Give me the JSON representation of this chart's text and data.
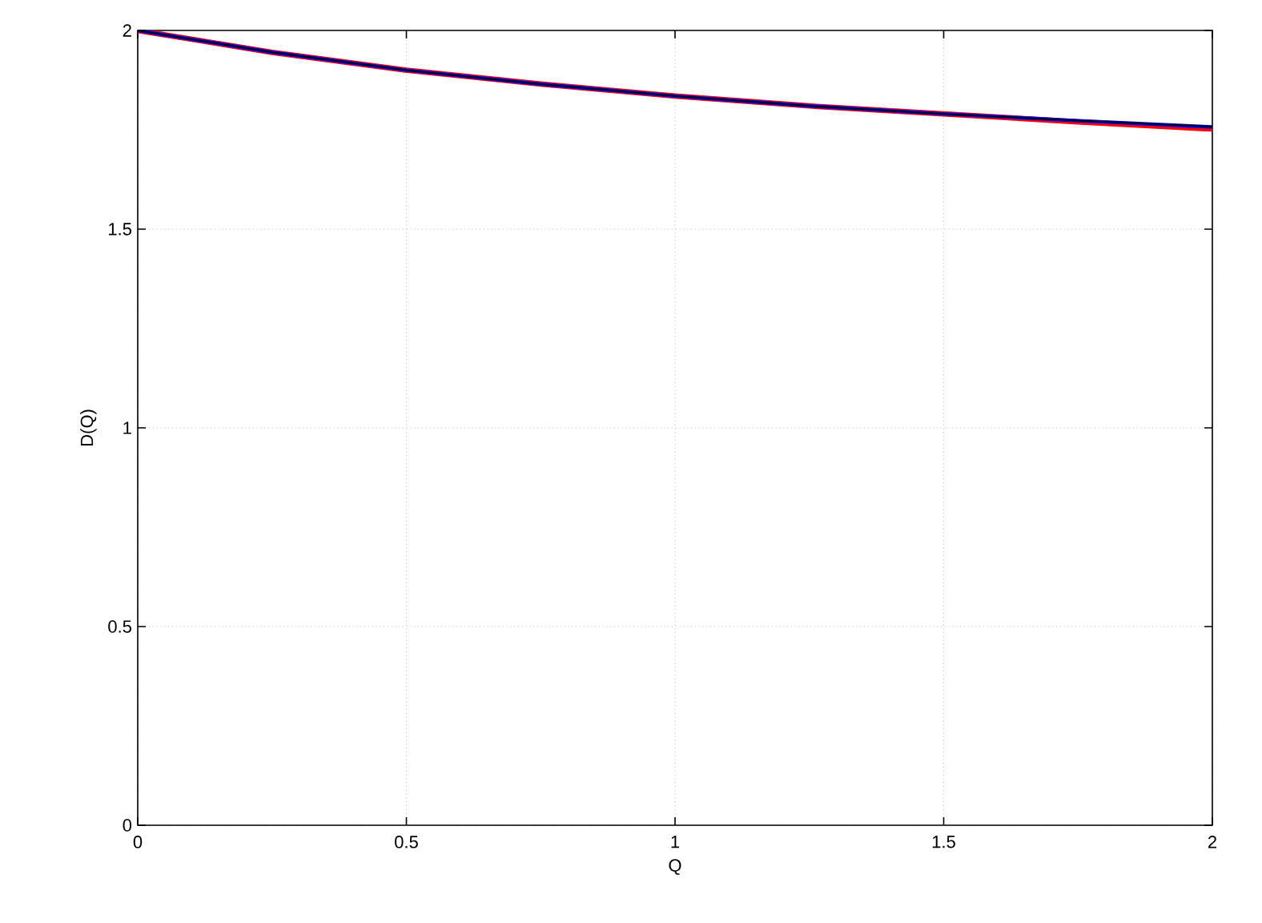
{
  "chart_data": {
    "type": "line",
    "xlabel": "Q",
    "ylabel": "D(Q)",
    "x": [
      0,
      0.25,
      0.5,
      0.75,
      1,
      1.25,
      1.5,
      1.75,
      2
    ],
    "series": [
      {
        "color": "#ff0000",
        "values": [
          2,
          1.945,
          1.9,
          1.865,
          1.835,
          1.81,
          1.79,
          1.77,
          1.752
        ]
      },
      {
        "color": "#0000ff",
        "values": [
          2,
          1.945,
          1.9,
          1.865,
          1.835,
          1.81,
          1.79,
          1.773,
          1.757
        ]
      },
      {
        "color": "#000000",
        "values": [
          2,
          1.945,
          1.9,
          1.865,
          1.835,
          1.81,
          1.79,
          1.773,
          1.758
        ]
      }
    ],
    "xlim": [
      0,
      2
    ],
    "ylim": [
      0,
      2
    ],
    "xticks": [
      0,
      0.5,
      1,
      1.5,
      2
    ],
    "yticks": [
      0,
      0.5,
      1,
      1.5,
      2
    ],
    "grid": true,
    "marker": "none",
    "line_style": "solid"
  }
}
